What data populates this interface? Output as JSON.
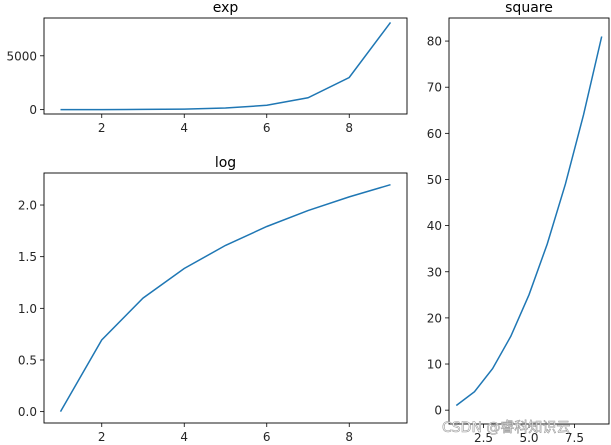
{
  "chart_data": [
    {
      "type": "line",
      "title": "exp",
      "xlabel": "",
      "ylabel": "",
      "x": [
        1,
        2,
        3,
        4,
        5,
        6,
        7,
        8,
        9
      ],
      "series": [
        {
          "name": "exp",
          "values": [
            2.72,
            7.39,
            20.09,
            54.6,
            148.4,
            403.4,
            1096.6,
            2981.0,
            8103.1
          ]
        }
      ],
      "xticks": [
        "2",
        "4",
        "6",
        "8"
      ],
      "yticks": [
        "0",
        "5000"
      ],
      "xlim": [
        0.6,
        9.4
      ],
      "ylim": [
        -405,
        8510
      ],
      "grid": false
    },
    {
      "type": "line",
      "title": "log",
      "xlabel": "",
      "ylabel": "",
      "x": [
        1,
        2,
        3,
        4,
        5,
        6,
        7,
        8,
        9
      ],
      "series": [
        {
          "name": "log",
          "values": [
            0.0,
            0.693,
            1.099,
            1.386,
            1.609,
            1.792,
            1.946,
            2.079,
            2.197
          ]
        }
      ],
      "xticks": [
        "2",
        "4",
        "6",
        "8"
      ],
      "yticks": [
        "0.0",
        "0.5",
        "1.0",
        "1.5",
        "2.0"
      ],
      "xlim": [
        0.6,
        9.4
      ],
      "ylim": [
        -0.11,
        2.31
      ],
      "grid": false
    },
    {
      "type": "line",
      "title": "square",
      "xlabel": "",
      "ylabel": "",
      "x": [
        1,
        2,
        3,
        4,
        5,
        6,
        7,
        8,
        9
      ],
      "series": [
        {
          "name": "square",
          "values": [
            1,
            4,
            9,
            16,
            25,
            36,
            49,
            64,
            81
          ]
        }
      ],
      "xticks": [
        "2.5",
        "5.0",
        "7.5"
      ],
      "yticks": [
        "0",
        "10",
        "20",
        "30",
        "40",
        "50",
        "60",
        "70",
        "80"
      ],
      "xlim": [
        0.6,
        9.4
      ],
      "ylim": [
        -3,
        85
      ],
      "grid": false
    }
  ],
  "line_color": "#1f77b4",
  "watermark": "CSDN @睿科知识云"
}
